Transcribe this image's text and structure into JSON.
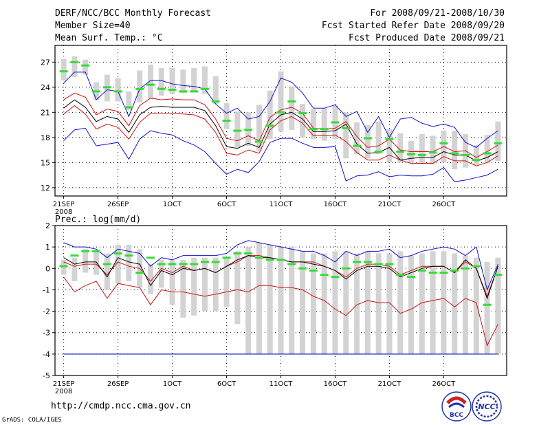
{
  "header": {
    "left": [
      "DERF/NCC/BCC Monthly Forecast",
      "Member Size=40",
      "Mean Surf. Temp.: °C"
    ],
    "right": [
      "For 2008/09/21-2008/10/30",
      "Fcst Started Refer Date 2008/09/20",
      "Fcst Produced Date 2008/09/21"
    ]
  },
  "footer": {
    "url": "http://cmdp.ncc.cma.gov.cn",
    "credit": "GrADS: COLA/IGES",
    "logo1_text": "BCC",
    "logo2_text": "NCC"
  },
  "colors": {
    "box": "#d3d3d3",
    "mean": "#000000",
    "spread": "#cc1111",
    "extreme": "#1111cc",
    "obs": "#33dd33"
  },
  "chart_data": [
    {
      "type": "box-ensemble",
      "title": "Mean Surf. Temp.: °C",
      "x_ticks": [
        {
          "day": 1,
          "label": "21SEP",
          "sub": "2008"
        },
        {
          "day": 6,
          "label": "26SEP"
        },
        {
          "day": 11,
          "label": "1OCT"
        },
        {
          "day": 16,
          "label": "6OCT"
        },
        {
          "day": 21,
          "label": "11OCT"
        },
        {
          "day": 26,
          "label": "16OCT"
        },
        {
          "day": 31,
          "label": "21OCT"
        },
        {
          "day": 36,
          "label": "26OCT"
        }
      ],
      "xlim": [
        0.2,
        41.8
      ],
      "ylim": [
        11,
        29
      ],
      "y_ticks": [
        12,
        15,
        18,
        21,
        24,
        27
      ],
      "box_min": [
        24.8,
        25.2,
        25.5,
        22.5,
        22.3,
        22.3,
        21.3,
        22.2,
        22.7,
        23.0,
        23.2,
        23.3,
        23.4,
        23.2,
        22.0,
        19.0,
        16.8,
        17.0,
        16.4,
        17.8,
        18.7,
        18.9,
        18.0,
        17.8,
        17.6,
        17.8,
        15.5,
        16.0,
        15.5,
        16.0,
        15.0,
        15.0,
        15.0,
        14.8,
        14.8,
        15.0,
        14.2,
        14.4,
        14.7,
        14.9,
        15.2
      ],
      "box_max": [
        27.4,
        27.7,
        27.3,
        24.6,
        25.5,
        25.1,
        23.5,
        26.0,
        26.7,
        26.3,
        26.3,
        26.1,
        26.3,
        26.5,
        25.3,
        22.1,
        21.1,
        21.0,
        21.9,
        23.6,
        25.9,
        24.1,
        22.0,
        21.4,
        21.5,
        21.8,
        21.0,
        19.8,
        19.5,
        19.9,
        19.0,
        18.5,
        17.6,
        18.4,
        18.2,
        18.8,
        18.8,
        18.4,
        17.1,
        18.3,
        19.9
      ],
      "mean": [
        21.5,
        22.5,
        21.6,
        19.9,
        20.5,
        20.2,
        18.6,
        20.7,
        21.6,
        21.7,
        21.6,
        21.6,
        21.6,
        21.2,
        19.4,
        16.9,
        16.7,
        17.3,
        16.8,
        19.6,
        20.7,
        21.0,
        20.2,
        18.7,
        18.7,
        18.8,
        19.6,
        17.2,
        16.1,
        16.2,
        16.8,
        15.3,
        15.5,
        15.6,
        15.6,
        16.3,
        15.9,
        15.9,
        15.2,
        15.6,
        16.3
      ],
      "upper": [
        22.5,
        23.3,
        22.8,
        20.7,
        21.4,
        21.1,
        19.4,
        21.8,
        22.7,
        22.5,
        22.6,
        22.5,
        22.5,
        21.9,
        20.2,
        17.9,
        17.6,
        18.2,
        17.6,
        20.4,
        21.3,
        21.6,
        20.9,
        19.1,
        19.0,
        19.1,
        19.9,
        18.1,
        16.8,
        17.0,
        17.8,
        16.5,
        16.3,
        16.3,
        16.3,
        16.9,
        16.3,
        16.4,
        15.6,
        16.3,
        17.1
      ],
      "lower": [
        20.8,
        21.8,
        20.8,
        19.0,
        19.6,
        19.2,
        17.8,
        19.8,
        20.9,
        20.9,
        20.9,
        20.8,
        20.7,
        20.2,
        18.6,
        16.1,
        15.9,
        16.5,
        16.1,
        18.9,
        20.0,
        20.5,
        19.7,
        18.2,
        18.2,
        18.3,
        17.5,
        16.2,
        15.3,
        15.3,
        15.9,
        15.3,
        14.9,
        14.9,
        14.9,
        15.7,
        15.2,
        15.2,
        14.6,
        15.0,
        15.8
      ],
      "max": [
        24.5,
        25.8,
        25.8,
        22.5,
        23.7,
        23.5,
        20.5,
        23.8,
        24.8,
        24.8,
        24.4,
        24.2,
        24.1,
        23.8,
        22.0,
        20.9,
        21.5,
        20.2,
        20.5,
        22.3,
        25.1,
        24.6,
        23.3,
        21.5,
        21.5,
        21.9,
        20.5,
        21.1,
        18.6,
        20.5,
        18.0,
        20.2,
        20.4,
        19.7,
        19.3,
        19.6,
        19.2,
        17.4,
        16.8,
        17.9,
        18.8
      ],
      "min": [
        17.6,
        18.9,
        19.1,
        17.0,
        17.2,
        17.4,
        15.4,
        17.8,
        18.8,
        18.5,
        18.3,
        17.6,
        17.1,
        16.3,
        14.9,
        13.6,
        14.2,
        13.8,
        15.1,
        17.4,
        17.9,
        17.9,
        17.3,
        16.8,
        16.8,
        16.9,
        12.8,
        13.4,
        13.5,
        13.9,
        13.3,
        13.5,
        13.4,
        13.4,
        13.6,
        14.4,
        12.7,
        12.9,
        13.2,
        13.5,
        14.2
      ],
      "obs": [
        25.9,
        27.0,
        26.6,
        23.5,
        24.0,
        23.5,
        21.6,
        23.8,
        24.3,
        23.8,
        23.7,
        23.5,
        23.5,
        23.8,
        22.3,
        20.0,
        18.8,
        18.9,
        17.5,
        19.4,
        21.0,
        22.3,
        20.9,
        19.0,
        19.0,
        19.8,
        19.1,
        17.0,
        17.9,
        16.3,
        17.8,
        16.3,
        16.0,
        15.9,
        16.2,
        17.3,
        16.1,
        15.9,
        15.3,
        16.1,
        17.3
      ]
    },
    {
      "type": "box-ensemble",
      "title": "Prec.: log(mm/d)",
      "x_ticks": [
        {
          "day": 1,
          "label": "21SEP",
          "sub": "2008"
        },
        {
          "day": 6,
          "label": "26SEP"
        },
        {
          "day": 11,
          "label": "1OCT"
        },
        {
          "day": 16,
          "label": "6OCT"
        },
        {
          "day": 21,
          "label": "11OCT"
        },
        {
          "day": 26,
          "label": "16OCT"
        },
        {
          "day": 31,
          "label": "21OCT"
        },
        {
          "day": 36,
          "label": "26OCT"
        }
      ],
      "xlim": [
        0.2,
        41.8
      ],
      "ylim": [
        -5,
        2
      ],
      "y_ticks": [
        -5,
        -4,
        -3,
        -2,
        -1,
        0,
        1,
        2
      ],
      "floor": -4,
      "box_min": [
        -0.3,
        -0.6,
        -0.2,
        -0.3,
        -1.0,
        -0.7,
        -0.6,
        -0.9,
        -1.2,
        -0.9,
        -1.7,
        -2.3,
        -2.2,
        -2.0,
        -2.0,
        -1.8,
        -2.6,
        -4.0,
        -4.0,
        -4.0,
        -4.0,
        -4.0,
        -4.0,
        -4.0,
        -4.0,
        -4.0,
        -4.0,
        -4.0,
        -4.0,
        -4.0,
        -4.0,
        -4.0,
        -4.0,
        -4.0,
        -4.0,
        -4.0,
        -4.0,
        -4.0,
        -4.0,
        -4.0,
        -4.0
      ],
      "box_max": [
        0.4,
        0.5,
        0.9,
        0.8,
        0.7,
        1.1,
        1.1,
        0.9,
        0.2,
        0.4,
        0.4,
        0.4,
        0.5,
        0.5,
        0.5,
        0.5,
        0.8,
        1.0,
        1.2,
        1.1,
        1.0,
        1.0,
        0.8,
        0.7,
        0.7,
        0.8,
        0.8,
        0.7,
        0.8,
        0.7,
        0.7,
        0.8,
        0.6,
        0.7,
        0.8,
        0.8,
        0.7,
        0.6,
        0.5,
        0.3,
        0.5
      ],
      "mean": [
        0.5,
        0.2,
        0.3,
        0.3,
        -0.4,
        0.5,
        0.3,
        0.2,
        -0.8,
        -0.1,
        -0.3,
        0.0,
        -0.1,
        0.0,
        -0.2,
        0.1,
        0.4,
        0.6,
        0.5,
        0.5,
        0.4,
        0.3,
        0.3,
        0.2,
        0.1,
        -0.1,
        -0.5,
        -0.1,
        0.1,
        0.1,
        0.0,
        -0.4,
        -0.2,
        0.0,
        0.1,
        0.1,
        -0.2,
        0.4,
        0.0,
        -1.4,
        0.1
      ],
      "upper": [
        0.3,
        0.1,
        0.2,
        0.2,
        -0.3,
        0.3,
        0.1,
        0.0,
        -0.6,
        0.0,
        -0.2,
        0.1,
        -0.1,
        0.0,
        -0.2,
        0.1,
        0.3,
        0.6,
        0.6,
        0.5,
        0.4,
        0.3,
        0.3,
        0.3,
        0.1,
        -0.1,
        -0.4,
        0.0,
        0.2,
        0.2,
        0.1,
        -0.3,
        -0.1,
        0.1,
        0.1,
        0.1,
        -0.2,
        0.3,
        0.0,
        -1.3,
        0.1
      ],
      "lower": [
        -0.4,
        -1.1,
        -0.8,
        -0.6,
        -1.4,
        -0.7,
        -0.8,
        -0.9,
        -1.7,
        -1.0,
        -1.1,
        -1.1,
        -1.2,
        -1.3,
        -1.2,
        -1.1,
        -1.0,
        -1.1,
        -0.8,
        -0.8,
        -0.9,
        -0.9,
        -1.0,
        -1.3,
        -1.5,
        -1.9,
        -2.2,
        -1.7,
        -1.5,
        -1.6,
        -1.6,
        -2.1,
        -1.9,
        -1.6,
        -1.5,
        -1.4,
        -1.8,
        -1.4,
        -1.6,
        -3.6,
        -2.6
      ],
      "max": [
        1.2,
        1.0,
        1.0,
        0.9,
        0.5,
        0.9,
        0.8,
        0.7,
        0.1,
        0.5,
        0.4,
        0.6,
        0.6,
        0.6,
        0.6,
        0.7,
        1.1,
        1.3,
        1.2,
        1.1,
        1.0,
        0.9,
        0.8,
        0.8,
        0.6,
        0.3,
        0.8,
        0.6,
        0.8,
        0.8,
        0.9,
        0.5,
        0.6,
        0.8,
        0.9,
        1.0,
        0.9,
        0.6,
        1.0,
        -1.0,
        0.2
      ],
      "min": [
        -4.0,
        -4.0,
        -4.0,
        -4.0,
        -4.0,
        -4.0,
        -4.0,
        -4.0,
        -4.0,
        -4.0,
        -4.0,
        -4.0,
        -4.0,
        -4.0,
        -4.0,
        -4.0,
        -4.0,
        -4.0,
        -4.0,
        -4.0,
        -4.0,
        -4.0,
        -4.0,
        -4.0,
        -4.0,
        -4.0,
        -4.0,
        -4.0,
        -4.0,
        -4.0,
        -4.0,
        -4.0,
        -4.0,
        -4.0,
        -4.0,
        -4.0,
        -4.0,
        -4.0,
        -4.0,
        -4.0,
        -4.0
      ],
      "obs": [
        0.1,
        0.6,
        0.8,
        0.8,
        0.2,
        0.7,
        0.6,
        -0.2,
        0.5,
        0.2,
        0.2,
        0.2,
        0.2,
        0.3,
        0.3,
        0.5,
        0.7,
        0.7,
        0.5,
        0.4,
        0.4,
        0.2,
        0.0,
        -0.1,
        -0.3,
        -0.4,
        0.0,
        0.3,
        0.3,
        0.2,
        0.2,
        -0.3,
        -0.4,
        -0.1,
        -0.2,
        -0.2,
        -0.1,
        0.0,
        0.1,
        -1.7,
        -0.3
      ]
    }
  ]
}
